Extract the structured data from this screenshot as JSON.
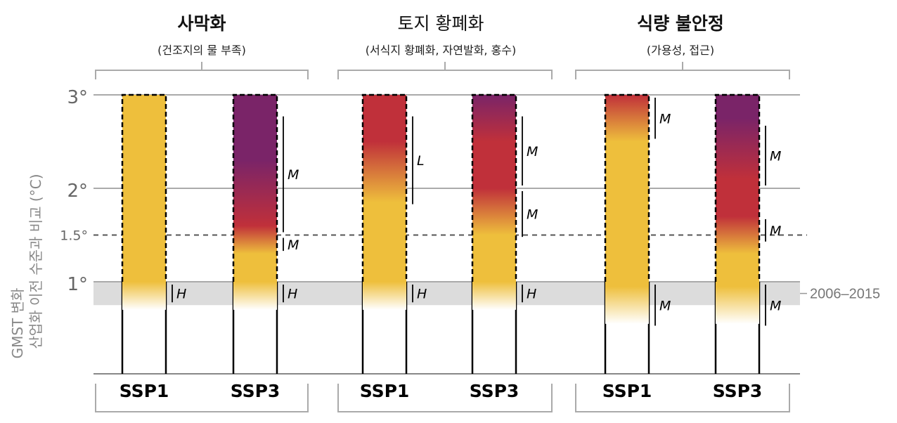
{
  "chart_data": {
    "type": "bar",
    "y_unit": "°C",
    "ylim": [
      -1,
      3
    ],
    "y_axis_label": [
      "GMST 변화",
      "산업화 이전 수준과 비교 (°C)"
    ],
    "y_ticks": [
      {
        "value": 3,
        "label": "3°",
        "style": "solid"
      },
      {
        "value": 2,
        "label": "2°",
        "style": "solid"
      },
      {
        "value": 1.5,
        "label": "1.5°",
        "style": "dashed"
      },
      {
        "value": 1,
        "label": "1°",
        "style": "solid"
      }
    ],
    "reference_band": {
      "label": "2006–2015",
      "from": 0.75,
      "to": 1.0
    },
    "risk_colors": {
      "undetectable": "#ffffff",
      "moderate": "#eebf3c",
      "high": "#c0303a",
      "very_high": "#7a2468"
    },
    "groups": [
      {
        "title": "사막화",
        "title_bold": true,
        "subtitle": "(건조지의 물 부족)",
        "bars": [
          {
            "scenario": "SSP1",
            "gradient": [
              [
                0.7,
                "undetectable"
              ],
              [
                1.0,
                "moderate"
              ],
              [
                3.0,
                "moderate"
              ]
            ],
            "confidence": [
              {
                "from": 0.75,
                "to": 1.0,
                "label": "H"
              }
            ]
          },
          {
            "scenario": "SSP3",
            "gradient": [
              [
                0.7,
                "undetectable"
              ],
              [
                1.0,
                "moderate"
              ],
              [
                1.3,
                "moderate"
              ],
              [
                1.6,
                "high"
              ],
              [
                2.3,
                "very_high"
              ],
              [
                3.0,
                "very_high"
              ]
            ],
            "confidence": [
              {
                "from": 0.75,
                "to": 1.0,
                "label": "H"
              },
              {
                "from": 1.3,
                "to": 1.5,
                "label": "M"
              },
              {
                "from": 1.5,
                "to": 2.8,
                "label": "M"
              }
            ]
          }
        ]
      },
      {
        "title": "토지 황폐화",
        "title_bold": false,
        "subtitle": "(서식지 황폐화, 자연발화, 홍수)",
        "bars": [
          {
            "scenario": "SSP1",
            "gradient": [
              [
                0.7,
                "undetectable"
              ],
              [
                1.0,
                "moderate"
              ],
              [
                1.85,
                "moderate"
              ],
              [
                2.5,
                "high"
              ],
              [
                3.0,
                "high"
              ]
            ],
            "confidence": [
              {
                "from": 0.75,
                "to": 1.0,
                "label": "H"
              },
              {
                "from": 1.8,
                "to": 2.8,
                "label": "L"
              }
            ]
          },
          {
            "scenario": "SSP3",
            "gradient": [
              [
                0.7,
                "undetectable"
              ],
              [
                1.0,
                "moderate"
              ],
              [
                1.5,
                "moderate"
              ],
              [
                2.0,
                "high"
              ],
              [
                2.5,
                "high"
              ],
              [
                3.0,
                "very_high"
              ]
            ],
            "confidence": [
              {
                "from": 0.75,
                "to": 1.0,
                "label": "H"
              },
              {
                "from": 1.45,
                "to": 2.0,
                "label": "M"
              },
              {
                "from": 2.0,
                "to": 2.8,
                "label": "M"
              }
            ]
          }
        ]
      },
      {
        "title": "식량 불안정",
        "title_bold": true,
        "subtitle": "(가용성, 접근)",
        "bars": [
          {
            "scenario": "SSP1",
            "gradient": [
              [
                0.55,
                "undetectable"
              ],
              [
                0.95,
                "moderate"
              ],
              [
                2.5,
                "moderate"
              ],
              [
                3.0,
                "high"
              ]
            ],
            "confidence": [
              {
                "from": 0.5,
                "to": 1.0,
                "label": "M"
              },
              {
                "from": 2.5,
                "to": 3.0,
                "label": "M"
              }
            ]
          },
          {
            "scenario": "SSP3",
            "gradient": [
              [
                0.55,
                "undetectable"
              ],
              [
                0.95,
                "moderate"
              ],
              [
                1.3,
                "moderate"
              ],
              [
                1.7,
                "high"
              ],
              [
                2.1,
                "high"
              ],
              [
                2.75,
                "very_high"
              ],
              [
                3.0,
                "very_high"
              ]
            ],
            "confidence": [
              {
                "from": 0.5,
                "to": 1.0,
                "label": "M"
              },
              {
                "from": 1.4,
                "to": 1.7,
                "label": "M"
              },
              {
                "from": 2.0,
                "to": 2.7,
                "label": "M"
              }
            ]
          }
        ]
      }
    ]
  }
}
